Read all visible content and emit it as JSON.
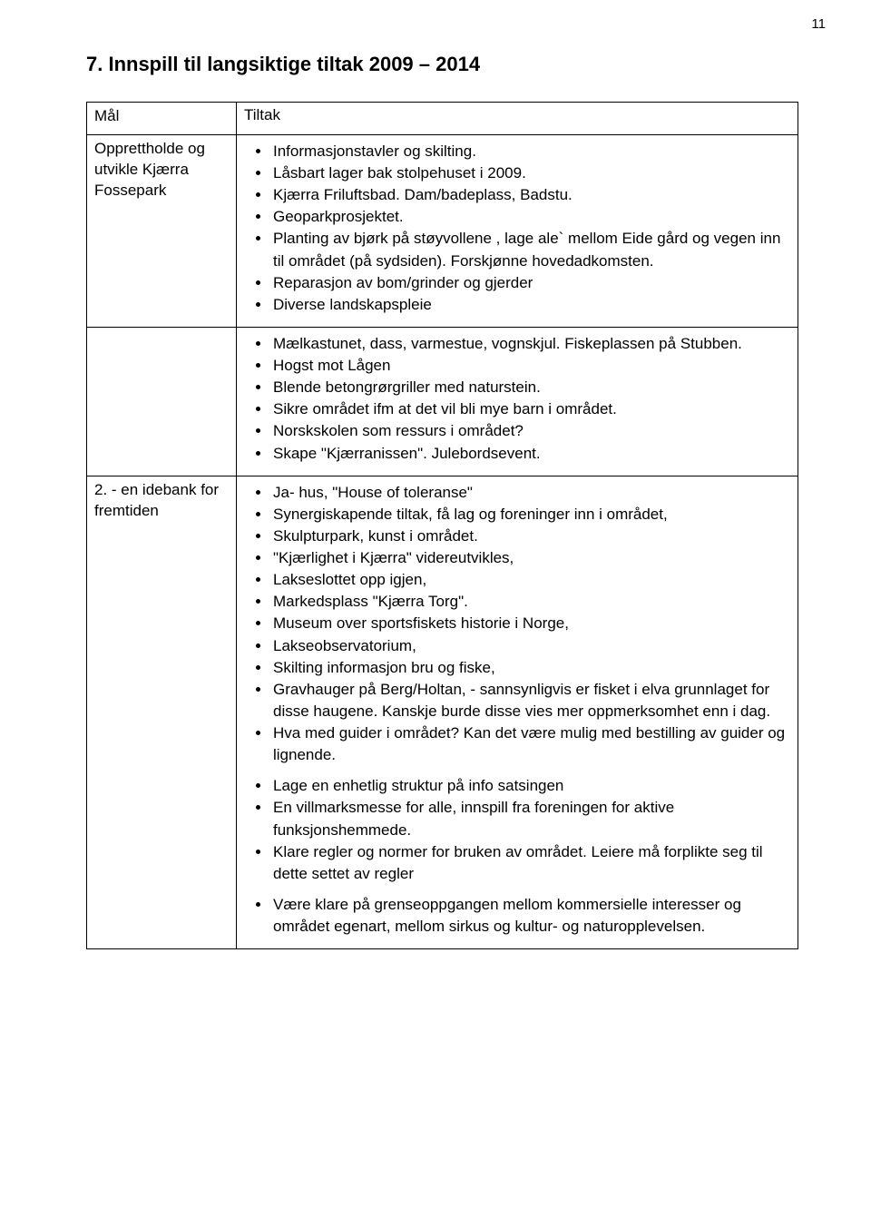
{
  "page_number": "11",
  "heading": "7.   Innspill til langsiktige tiltak 2009 – 2014",
  "table": {
    "left_header": "Mål",
    "right_header": "Tiltak",
    "rows": [
      {
        "label": "Opprettholde og utvikle Kjærra Fossepark",
        "groups": [
          [
            "Informasjonstavler og skilting.",
            "Låsbart lager bak stolpehuset i 2009.",
            "Kjærra Friluftsbad. Dam/badeplass, Badstu.",
            "Geoparkprosjektet.",
            "Planting av bjørk på støyvollene , lage ale` mellom Eide gård og vegen inn til området (på sydsiden). Forskjønne hovedadkomsten.",
            "Reparasjon av bom/grinder og gjerder",
            "Diverse landskapspleie"
          ],
          [
            "Mælkastunet, dass, varmestue, vognskjul. Fiskeplassen på Stubben.",
            "Hogst mot Lågen",
            "Blende betongrørgriller med naturstein.",
            "Sikre området ifm at det vil bli mye barn i området.",
            "Norskskolen som ressurs i området?",
            "Skape \"Kjærranissen\". Julebordsevent."
          ]
        ]
      },
      {
        "label": "2. - en idebank for fremtiden",
        "groups": [
          [
            "Ja- hus, \"House of toleranse\"",
            "Synergiskapende tiltak, få lag og foreninger inn i området,",
            "Skulpturpark, kunst i området.",
            "\"Kjærlighet i Kjærra\" videreutvikles,",
            "Lakseslottet opp igjen,",
            "Markedsplass \"Kjærra Torg\".",
            "Museum over sportsfiskets historie i Norge,",
            "Lakseobservatorium,",
            "Skilting informasjon bru og fiske,",
            "Gravhauger på Berg/Holtan, - sannsynligvis er fisket i elva grunnlaget for disse haugene. Kanskje burde disse vies mer oppmerksomhet enn i dag.",
            "Hva med guider i området? Kan det være mulig med bestilling av guider og lignende."
          ],
          [
            "Lage en enhetlig struktur på info satsingen",
            "En villmarksmesse for alle, innspill fra foreningen for aktive funksjonshemmede.",
            "Klare regler og normer for bruken av området. Leiere må forplikte seg til dette settet av regler"
          ],
          [
            "Være klare på grenseoppgangen mellom kommersielle interesser og området egenart, mellom sirkus og kultur- og naturopplevelsen."
          ]
        ]
      }
    ]
  }
}
